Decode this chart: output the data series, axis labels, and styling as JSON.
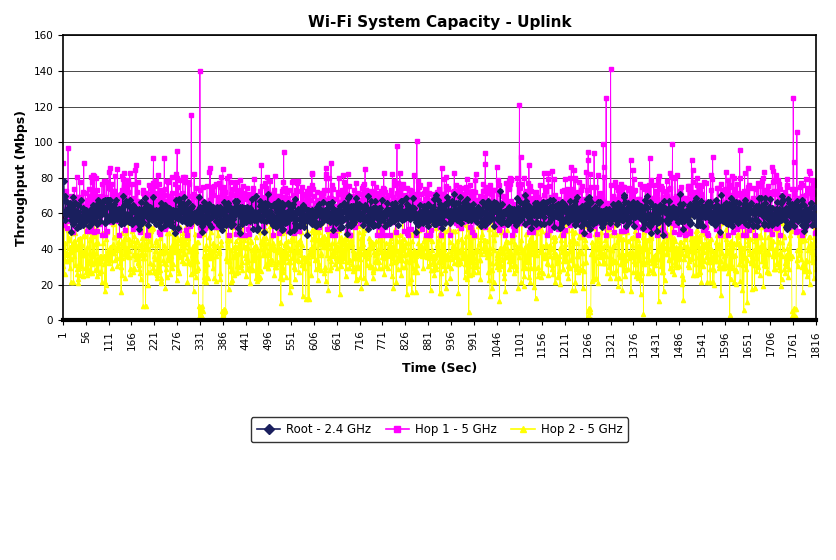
{
  "title": "Wi-Fi System Capacity - Uplink",
  "xlabel": "Time (Sec)",
  "ylabel": "Throughput (Mbps)",
  "ylim": [
    0,
    160
  ],
  "yticks": [
    0,
    20,
    40,
    60,
    80,
    100,
    120,
    140,
    160
  ],
  "xtick_values": [
    1,
    56,
    111,
    166,
    221,
    276,
    331,
    386,
    441,
    496,
    551,
    606,
    661,
    716,
    771,
    826,
    881,
    936,
    991,
    1046,
    1101,
    1156,
    1211,
    1266,
    1321,
    1376,
    1431,
    1486,
    1541,
    1596,
    1651,
    1706,
    1761,
    1816
  ],
  "series": [
    {
      "label": "Root - 2.4 GHz",
      "color": "#1A1F5E",
      "marker": "D",
      "markersize": 3,
      "linewidth": 0.6
    },
    {
      "label": "Hop 1 - 5 GHz",
      "color": "#FF00FF",
      "marker": "s",
      "markersize": 3,
      "linewidth": 0.6
    },
    {
      "label": "Hop 2 - 5 GHz",
      "color": "#FFFF00",
      "marker": "^",
      "markersize": 3,
      "linewidth": 0.6
    }
  ],
  "bg_color": "#FFFFFF",
  "legend_frameon": true,
  "title_fontsize": 11,
  "axis_label_fontsize": 9,
  "tick_fontsize": 7.5
}
